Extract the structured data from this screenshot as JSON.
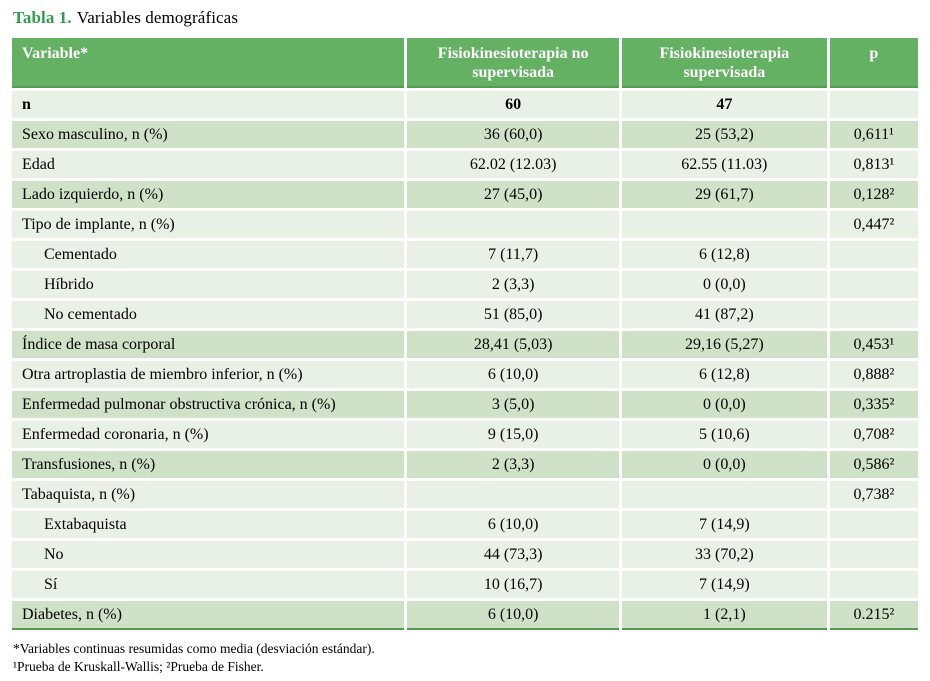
{
  "title": {
    "label": "Tabla 1.",
    "text": "Variables demográficas"
  },
  "table": {
    "columns": [
      "Variable*",
      "Fisiokinesioterapia no supervisada",
      "Fisiokinesioterapia supervisada",
      "p"
    ],
    "rows": [
      {
        "label": "n",
        "g1": "60",
        "g2": "47",
        "p": "",
        "bg": "light",
        "indent": false,
        "bold": true
      },
      {
        "label": "Sexo masculino, n (%)",
        "g1": "36 (60,0)",
        "g2": "25 (53,2)",
        "p": "0,611¹",
        "bg": "green",
        "indent": false,
        "bold": false
      },
      {
        "label": "Edad",
        "g1": "62.02 (12.03)",
        "g2": "62.55 (11.03)",
        "p": "0,813¹",
        "bg": "light",
        "indent": false,
        "bold": false
      },
      {
        "label": "Lado izquierdo, n (%)",
        "g1": "27 (45,0)",
        "g2": "29 (61,7)",
        "p": "0,128²",
        "bg": "green",
        "indent": false,
        "bold": false
      },
      {
        "label": "Tipo de implante, n (%)",
        "g1": "",
        "g2": "",
        "p": "0,447²",
        "bg": "light",
        "indent": false,
        "bold": false
      },
      {
        "label": "Cementado",
        "g1": "7 (11,7)",
        "g2": "6 (12,8)",
        "p": "",
        "bg": "light",
        "indent": true,
        "bold": false
      },
      {
        "label": "Híbrido",
        "g1": "2 (3,3)",
        "g2": "0 (0,0)",
        "p": "",
        "bg": "light",
        "indent": true,
        "bold": false
      },
      {
        "label": "No cementado",
        "g1": "51 (85,0)",
        "g2": "41 (87,2)",
        "p": "",
        "bg": "light",
        "indent": true,
        "bold": false
      },
      {
        "label": "Índice de masa corporal",
        "g1": "28,41 (5,03)",
        "g2": "29,16 (5,27)",
        "p": "0,453¹",
        "bg": "green",
        "indent": false,
        "bold": false
      },
      {
        "label": "Otra artroplastia de miembro inferior, n (%)",
        "g1": "6 (10,0)",
        "g2": "6 (12,8)",
        "p": "0,888²",
        "bg": "light",
        "indent": false,
        "bold": false
      },
      {
        "label": "Enfermedad pulmonar obstructiva crónica, n (%)",
        "g1": "3 (5,0)",
        "g2": "0 (0,0)",
        "p": "0,335²",
        "bg": "green",
        "indent": false,
        "bold": false
      },
      {
        "label": "Enfermedad coronaria, n (%)",
        "g1": "9 (15,0)",
        "g2": "5 (10,6)",
        "p": "0,708²",
        "bg": "light",
        "indent": false,
        "bold": false
      },
      {
        "label": "Transfusiones, n (%)",
        "g1": "2 (3,3)",
        "g2": "0 (0,0)",
        "p": "0,586²",
        "bg": "green",
        "indent": false,
        "bold": false
      },
      {
        "label": "Tabaquista, n (%)",
        "g1": "",
        "g2": "",
        "p": "0,738²",
        "bg": "light",
        "indent": false,
        "bold": false
      },
      {
        "label": "Extabaquista",
        "g1": "6 (10,0)",
        "g2": "7 (14,9)",
        "p": "",
        "bg": "light",
        "indent": true,
        "bold": false
      },
      {
        "label": "No",
        "g1": "44 (73,3)",
        "g2": "33 (70,2)",
        "p": "",
        "bg": "light",
        "indent": true,
        "bold": false
      },
      {
        "label": "Sí",
        "g1": "10 (16,7)",
        "g2": "7 (14,9)",
        "p": "",
        "bg": "light",
        "indent": true,
        "bold": false
      },
      {
        "label": "Diabetes, n (%)",
        "g1": "6 (10,0)",
        "g2": "1 (2,1)",
        "p": "0.215²",
        "bg": "green",
        "indent": false,
        "bold": false
      }
    ]
  },
  "footnotes": [
    "*Variables continuas resumidas como media (desviación estándar).",
    "¹Prueba de Kruskall-Wallis; ²Prueba de Fisher."
  ],
  "colors": {
    "header_green": "#65b164",
    "row_green": "#cfe2c8",
    "row_light": "#e9f1e6",
    "dark_border_green": "#579a56",
    "title_green": "#2f9e4e",
    "header_text": "#ffffff",
    "body_text": "#000000"
  }
}
